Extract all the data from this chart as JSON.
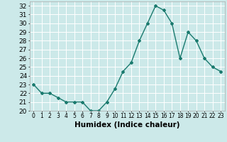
{
  "title": "",
  "xlabel": "Humidex (Indice chaleur)",
  "ylabel": "",
  "x_values": [
    0,
    1,
    2,
    3,
    4,
    5,
    6,
    7,
    8,
    9,
    10,
    11,
    12,
    13,
    14,
    15,
    16,
    17,
    18,
    19,
    20,
    21,
    22,
    23
  ],
  "y_values": [
    23,
    22,
    22,
    21.5,
    21,
    21,
    21,
    20,
    20,
    21,
    22.5,
    24.5,
    25.5,
    28,
    30,
    32,
    31.5,
    30,
    26,
    29,
    28,
    26,
    25,
    24.5
  ],
  "line_color": "#1a7a6e",
  "marker": "D",
  "marker_size": 2.0,
  "line_width": 1.0,
  "background_color": "#cce9e9",
  "grid_color": "#ffffff",
  "ylim": [
    20,
    32.5
  ],
  "xlim": [
    -0.5,
    23.5
  ],
  "yticks": [
    20,
    21,
    22,
    23,
    24,
    25,
    26,
    27,
    28,
    29,
    30,
    31,
    32
  ],
  "xticks": [
    0,
    1,
    2,
    3,
    4,
    5,
    6,
    7,
    8,
    9,
    10,
    11,
    12,
    13,
    14,
    15,
    16,
    17,
    18,
    19,
    20,
    21,
    22,
    23
  ],
  "xlabel_fontsize": 7.5,
  "ytick_fontsize": 6.5,
  "xtick_fontsize": 5.5
}
